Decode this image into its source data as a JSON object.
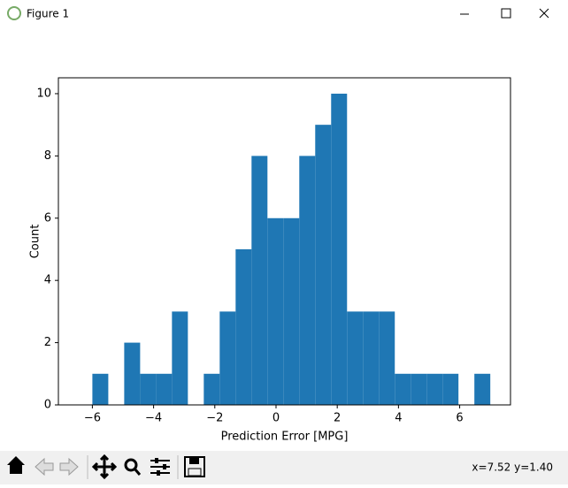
{
  "window": {
    "title": "Figure 1",
    "status": "x=7.52 y=1.40"
  },
  "chart_data": {
    "type": "histogram",
    "xlabel": "Prediction Error [MPG]",
    "ylabel": "Count",
    "color": "#1f77b4",
    "bins": [
      -6.0,
      -5.48,
      -4.96,
      -4.44,
      -3.92,
      -3.4,
      -2.88,
      -2.36,
      -1.84,
      -1.32,
      -0.8,
      -0.28,
      0.24,
      0.76,
      1.28,
      1.8,
      2.32,
      2.84,
      3.36,
      3.88,
      4.4,
      4.92,
      5.44,
      5.96,
      6.48,
      7.0
    ],
    "counts": [
      1,
      0,
      2,
      1,
      1,
      3,
      0,
      1,
      3,
      5,
      8,
      6,
      6,
      8,
      9,
      10,
      3,
      3,
      3,
      1,
      1,
      1,
      1,
      0,
      1
    ],
    "xlim": [
      -7.11,
      7.66
    ],
    "ylim": [
      0,
      10.51
    ],
    "xticks": [
      {
        "value": -6,
        "label": "−6"
      },
      {
        "value": -4,
        "label": "−4"
      },
      {
        "value": -2,
        "label": "−2"
      },
      0,
      2,
      4,
      6
    ],
    "yticks": [
      0,
      2,
      4,
      6,
      8,
      10
    ]
  }
}
